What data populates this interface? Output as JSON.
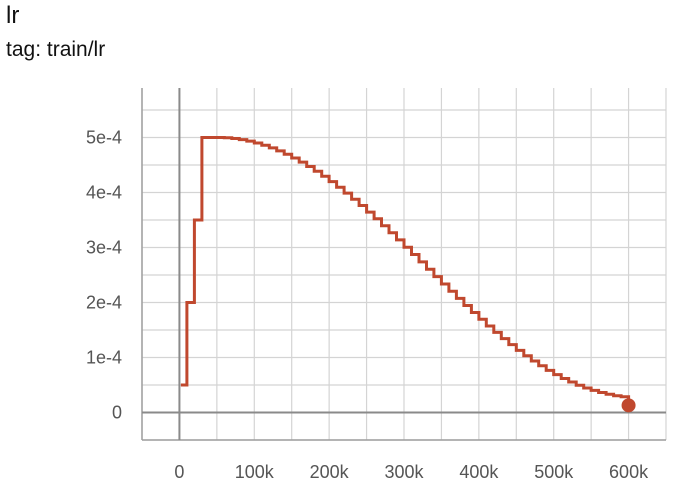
{
  "card": {
    "title": "lr",
    "tag": "tag: train/lr"
  },
  "colors": {
    "series": "#c0482e",
    "grid": "#d4d4d4",
    "axis": "#9e9e9e",
    "zero_axis": "#8a8a8a",
    "tick_text": "#555555"
  },
  "chart_data": {
    "type": "line",
    "title": "lr",
    "subtitle": "tag: train/lr",
    "xlabel": "",
    "ylabel": "",
    "xlim": [
      -50000,
      650000
    ],
    "ylim": [
      -5e-05,
      0.00059
    ],
    "x_ticks": [
      0,
      100000,
      200000,
      300000,
      400000,
      500000,
      600000
    ],
    "x_tick_labels": [
      "0",
      "100k",
      "200k",
      "300k",
      "400k",
      "500k",
      "600k"
    ],
    "y_ticks": [
      0,
      0.0001,
      0.0002,
      0.0003,
      0.0004,
      0.0005
    ],
    "y_tick_labels": [
      "0",
      "1e-4",
      "2e-4",
      "3e-4",
      "4e-4",
      "5e-4"
    ],
    "grid": true,
    "series": [
      {
        "step": true,
        "color": "#c0482e",
        "x": [
          2000,
          10000,
          20000,
          30000,
          40000,
          50000,
          60000,
          70000,
          80000,
          90000,
          100000,
          110000,
          120000,
          130000,
          140000,
          150000,
          160000,
          170000,
          180000,
          190000,
          200000,
          210000,
          220000,
          230000,
          240000,
          250000,
          260000,
          270000,
          280000,
          290000,
          300000,
          310000,
          320000,
          330000,
          340000,
          350000,
          360000,
          370000,
          380000,
          390000,
          400000,
          410000,
          420000,
          430000,
          440000,
          450000,
          460000,
          470000,
          480000,
          490000,
          500000,
          510000,
          520000,
          530000,
          540000,
          550000,
          560000,
          570000,
          580000,
          590000,
          600000
        ],
        "values": [
          5e-05,
          0.0002,
          0.00035,
          0.0005,
          0.0005,
          0.0005,
          0.0004994,
          0.0004981,
          0.0004961,
          0.0004934,
          0.00049,
          0.0004859,
          0.0004811,
          0.0004756,
          0.0004695,
          0.0004627,
          0.0004553,
          0.0004473,
          0.0004387,
          0.0004295,
          0.0004198,
          0.0004096,
          0.0003989,
          0.0003878,
          0.0003763,
          0.0003644,
          0.0003521,
          0.0003396,
          0.0003268,
          0.0003138,
          0.0003006,
          0.0002873,
          0.0002739,
          0.0002605,
          0.0002471,
          0.0002337,
          0.0002205,
          0.0002074,
          0.0001945,
          0.0001818,
          0.0001694,
          0.0001573,
          0.0001456,
          0.0001343,
          0.0001234,
          0.000113,
          0.0001031,
          9.37e-05,
          8.49e-05,
          7.66e-05,
          6.9e-05,
          6.19e-05,
          5.55e-05,
          4.97e-05,
          4.46e-05,
          4.01e-05,
          3.63e-05,
          3.31e-05,
          3.06e-05,
          2.87e-05,
          1.3e-05
        ]
      }
    ]
  }
}
